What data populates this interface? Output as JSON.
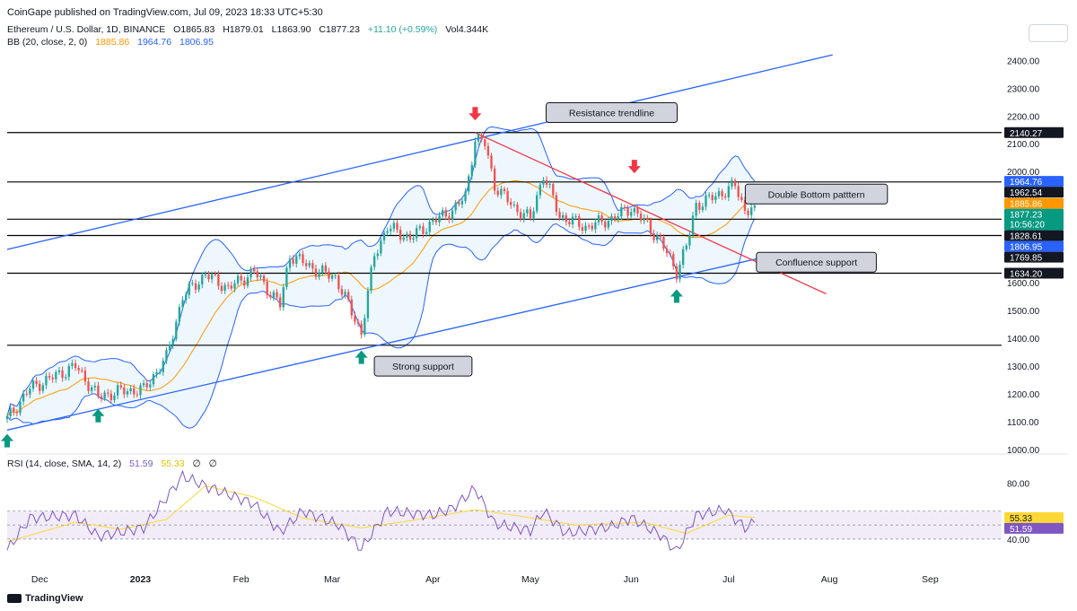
{
  "header": {
    "published": "CoinGape published on TradingView.com, Jul 09, 2023 18:33 UTC+5:30"
  },
  "legend": {
    "symbol": "Ethereum / U.S. Dollar, 1D, BINANCE",
    "open": "O1865.83",
    "high": "H1879.01",
    "low": "L1863.90",
    "close": "C1877.23",
    "change": "+11.10 (+0.59%)",
    "volume": "Vol4.344K",
    "bb_label": "BB (20, close, 2, 0)",
    "bb_basis": "1885.86",
    "bb_upper": "1964.76",
    "bb_lower": "1806.95",
    "rsi_label": "RSI (14, close, SMA, 14, 2)",
    "rsi_value": "51.59",
    "rsi_sma": "55.33",
    "rsi_extra1": "∅",
    "rsi_extra2": "∅"
  },
  "footer": {
    "brand": "TradingView"
  },
  "colors": {
    "up": "#26a69a",
    "down": "#ef5350",
    "bb_line": "#2962ff",
    "bb_basis": "#ff9800",
    "bb_fill": "#e3f2fd",
    "trend_blue": "#2962ff",
    "trend_red": "#f23645",
    "rsi_line": "#7e57c2",
    "rsi_sma": "#fdd835",
    "rsi_band": "#ede7f6"
  },
  "chart_data": [
    {
      "type": "candlestick",
      "title": "Ethereum / U.S. Dollar, 1D, BINANCE",
      "ylim": [
        1000,
        2430
      ],
      "y_ticks": [
        1000,
        1100,
        1200,
        1300,
        1400,
        1500,
        1600,
        1700,
        1800,
        1900,
        2000,
        2100,
        2200,
        2300,
        2400
      ],
      "y_tick_labels": [
        "1000.00",
        "1100.00",
        "1200.00",
        "1300.00",
        "1400.00",
        "1500.00",
        "1600.00",
        "1700.00",
        "1800.00",
        "1900.00",
        "2000.00",
        "2100.00",
        "2200.00",
        "2300.00",
        "2400.00"
      ],
      "x_ticks": [
        {
          "label": "Dec",
          "date": "2022-12-01"
        },
        {
          "label": "2023",
          "date": "2023-01-01"
        },
        {
          "label": "Feb",
          "date": "2023-02-01"
        },
        {
          "label": "Mar",
          "date": "2023-03-01"
        },
        {
          "label": "Apr",
          "date": "2023-04-01"
        },
        {
          "label": "May",
          "date": "2023-05-01"
        },
        {
          "label": "Jun",
          "date": "2023-06-01"
        },
        {
          "label": "Jul",
          "date": "2023-07-01"
        },
        {
          "label": "Aug",
          "date": "2023-08-01"
        },
        {
          "label": "Sep",
          "date": "2023-09-01"
        }
      ],
      "x_range": [
        "2022-11-21",
        "2023-09-23"
      ],
      "series_key_points": [
        {
          "date": "2022-11-21",
          "close": 1110
        },
        {
          "date": "2022-11-28",
          "close": 1220
        },
        {
          "date": "2022-12-05",
          "close": 1260
        },
        {
          "date": "2022-12-12",
          "close": 1300
        },
        {
          "date": "2022-12-19",
          "close": 1190
        },
        {
          "date": "2022-12-26",
          "close": 1210
        },
        {
          "date": "2023-01-02",
          "close": 1215
        },
        {
          "date": "2023-01-09",
          "close": 1330
        },
        {
          "date": "2023-01-14",
          "close": 1550
        },
        {
          "date": "2023-01-21",
          "close": 1630
        },
        {
          "date": "2023-01-28",
          "close": 1580
        },
        {
          "date": "2023-02-05",
          "close": 1640
        },
        {
          "date": "2023-02-13",
          "close": 1520
        },
        {
          "date": "2023-02-16",
          "close": 1700
        },
        {
          "date": "2023-02-25",
          "close": 1640
        },
        {
          "date": "2023-03-02",
          "close": 1620
        },
        {
          "date": "2023-03-10",
          "close": 1420
        },
        {
          "date": "2023-03-14",
          "close": 1700
        },
        {
          "date": "2023-03-18",
          "close": 1800
        },
        {
          "date": "2023-03-25",
          "close": 1760
        },
        {
          "date": "2023-04-01",
          "close": 1820
        },
        {
          "date": "2023-04-07",
          "close": 1860
        },
        {
          "date": "2023-04-11",
          "close": 1910
        },
        {
          "date": "2023-04-14",
          "close": 2120
        },
        {
          "date": "2023-04-17",
          "close": 2100
        },
        {
          "date": "2023-04-20",
          "close": 1950
        },
        {
          "date": "2023-04-26",
          "close": 1870
        },
        {
          "date": "2023-05-01",
          "close": 1830
        },
        {
          "date": "2023-05-05",
          "close": 1990
        },
        {
          "date": "2023-05-10",
          "close": 1840
        },
        {
          "date": "2023-05-18",
          "close": 1800
        },
        {
          "date": "2023-05-26",
          "close": 1830
        },
        {
          "date": "2023-06-01",
          "close": 1870
        },
        {
          "date": "2023-06-05",
          "close": 1820
        },
        {
          "date": "2023-06-10",
          "close": 1750
        },
        {
          "date": "2023-06-15",
          "close": 1640
        },
        {
          "date": "2023-06-18",
          "close": 1730
        },
        {
          "date": "2023-06-21",
          "close": 1880
        },
        {
          "date": "2023-06-25",
          "close": 1900
        },
        {
          "date": "2023-06-30",
          "close": 1930
        },
        {
          "date": "2023-07-03",
          "close": 1950
        },
        {
          "date": "2023-07-06",
          "close": 1860
        },
        {
          "date": "2023-07-09",
          "close": 1877.23
        }
      ],
      "horizontal_levels": [
        2140.27,
        1962.54,
        1828.61,
        1769.85,
        1634.2,
        1375
      ],
      "price_labels": [
        {
          "value": 2140.27,
          "text": "2140.27",
          "style": "dark"
        },
        {
          "value": 1964.76,
          "text": "1964.76",
          "style": "blue"
        },
        {
          "value": 1962.54,
          "text": "1962.54",
          "style": "dark"
        },
        {
          "value": 1885.86,
          "text": "1885.86",
          "style": "orange"
        },
        {
          "value": 1877.23,
          "text": "1877.23",
          "style": "green",
          "sub": "10:56:20"
        },
        {
          "value": 1828.61,
          "text": "1828.61",
          "style": "dark"
        },
        {
          "value": 1806.95,
          "text": "1806.95",
          "style": "blue"
        },
        {
          "value": 1769.85,
          "text": "1769.85",
          "style": "dark"
        },
        {
          "value": 1634.2,
          "text": "1634.20",
          "style": "dark"
        }
      ],
      "trendlines": [
        {
          "name": "upper channel",
          "color": "blue",
          "from": {
            "date": "2022-11-21",
            "value": 1720
          },
          "to": {
            "date": "2023-08-02",
            "value": 2420
          }
        },
        {
          "name": "lower channel",
          "color": "blue",
          "from": {
            "date": "2022-11-21",
            "value": 1070
          },
          "to": {
            "date": "2023-07-13",
            "value": 1695
          }
        },
        {
          "name": "resistance trendline",
          "color": "red",
          "from": {
            "date": "2023-04-14",
            "value": 2140
          },
          "to": {
            "date": "2023-07-31",
            "value": 1560
          }
        }
      ],
      "annotations": [
        {
          "text": "Resistance trendline",
          "date": "2023-05-26",
          "value": 2212
        },
        {
          "text": "Double Bottom patttern",
          "date": "2023-07-28",
          "value": 1919
        },
        {
          "text": "Confluence support",
          "date": "2023-07-28",
          "value": 1674
        },
        {
          "text": "Strong support",
          "date": "2023-03-29",
          "value": 1300
        }
      ],
      "markers": [
        {
          "type": "arrow-down",
          "color": "red",
          "date": "2023-04-14",
          "value": 2200
        },
        {
          "type": "arrow-down",
          "color": "red",
          "date": "2023-06-02",
          "value": 2010
        },
        {
          "type": "arrow-up",
          "color": "green",
          "date": "2023-06-15",
          "value": 1560
        },
        {
          "type": "arrow-up",
          "color": "green",
          "date": "2023-03-10",
          "value": 1340
        },
        {
          "type": "arrow-up",
          "color": "green",
          "date": "2022-12-19",
          "value": 1130
        },
        {
          "type": "arrow-up",
          "color": "green",
          "date": "2022-11-21",
          "value": 1040
        }
      ]
    },
    {
      "type": "line",
      "title": "RSI (14, close, SMA, 14, 2)",
      "ylim": [
        20,
        95
      ],
      "y_ticks": [
        40,
        80
      ],
      "y_tick_labels": [
        "40.00",
        "80.00"
      ],
      "band": [
        40,
        60
      ],
      "series": [
        {
          "name": "RSI",
          "values_key_points": [
            {
              "date": "2022-11-21",
              "value": 32
            },
            {
              "date": "2022-11-28",
              "value": 55
            },
            {
              "date": "2022-12-12",
              "value": 57
            },
            {
              "date": "2022-12-19",
              "value": 42
            },
            {
              "date": "2023-01-02",
              "value": 48
            },
            {
              "date": "2023-01-14",
              "value": 85
            },
            {
              "date": "2023-01-21",
              "value": 78
            },
            {
              "date": "2023-02-05",
              "value": 65
            },
            {
              "date": "2023-02-13",
              "value": 45
            },
            {
              "date": "2023-02-20",
              "value": 60
            },
            {
              "date": "2023-03-03",
              "value": 50
            },
            {
              "date": "2023-03-10",
              "value": 33
            },
            {
              "date": "2023-03-18",
              "value": 60
            },
            {
              "date": "2023-04-01",
              "value": 57
            },
            {
              "date": "2023-04-07",
              "value": 62
            },
            {
              "date": "2023-04-14",
              "value": 76
            },
            {
              "date": "2023-04-20",
              "value": 51
            },
            {
              "date": "2023-05-01",
              "value": 46
            },
            {
              "date": "2023-05-05",
              "value": 60
            },
            {
              "date": "2023-05-12",
              "value": 44
            },
            {
              "date": "2023-05-26",
              "value": 49
            },
            {
              "date": "2023-06-01",
              "value": 55
            },
            {
              "date": "2023-06-10",
              "value": 43
            },
            {
              "date": "2023-06-15",
              "value": 31
            },
            {
              "date": "2023-06-21",
              "value": 57
            },
            {
              "date": "2023-06-30",
              "value": 61
            },
            {
              "date": "2023-07-06",
              "value": 48
            },
            {
              "date": "2023-07-09",
              "value": 51.59
            }
          ]
        },
        {
          "name": "RSI-based MA",
          "values_key_points": [
            {
              "date": "2022-11-21",
              "value": 38
            },
            {
              "date": "2022-12-12",
              "value": 52
            },
            {
              "date": "2022-12-26",
              "value": 47
            },
            {
              "date": "2023-01-09",
              "value": 54
            },
            {
              "date": "2023-01-21",
              "value": 78
            },
            {
              "date": "2023-02-05",
              "value": 70
            },
            {
              "date": "2023-02-20",
              "value": 55
            },
            {
              "date": "2023-03-10",
              "value": 48
            },
            {
              "date": "2023-03-25",
              "value": 53
            },
            {
              "date": "2023-04-14",
              "value": 61
            },
            {
              "date": "2023-04-26",
              "value": 57
            },
            {
              "date": "2023-05-15",
              "value": 50
            },
            {
              "date": "2023-06-05",
              "value": 52
            },
            {
              "date": "2023-06-18",
              "value": 44
            },
            {
              "date": "2023-07-01",
              "value": 57
            },
            {
              "date": "2023-07-09",
              "value": 55.33
            }
          ]
        }
      ],
      "price_labels": [
        {
          "value": 55.33,
          "text": "55.33",
          "style": "yellow"
        },
        {
          "value": 51.59,
          "text": "51.59",
          "style": "purple"
        }
      ]
    }
  ]
}
